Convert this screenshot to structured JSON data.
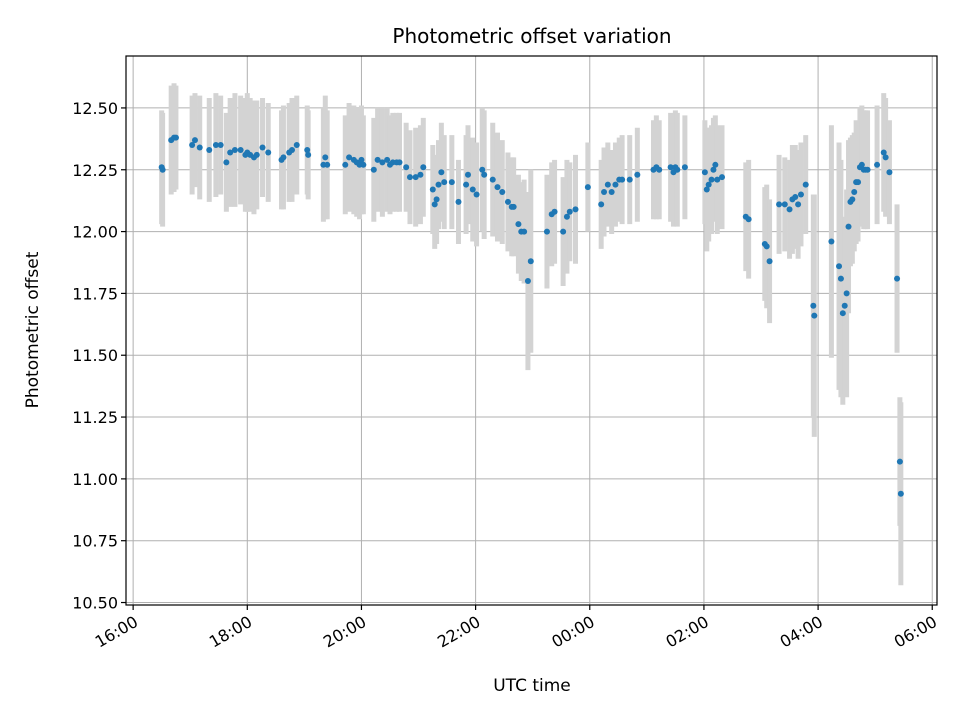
{
  "chart_data": {
    "type": "scatter",
    "title": "Photometric offset variation",
    "xlabel": "UTC time",
    "ylabel": "Photometric offset",
    "x_axis": {
      "kind": "time",
      "range": [
        "16:00",
        "06:05"
      ],
      "ticks": [
        "16:00",
        "18:00",
        "20:00",
        "22:00",
        "00:00",
        "02:00",
        "04:00",
        "06:00"
      ]
    },
    "y_axis": {
      "range": [
        10.49,
        12.71
      ],
      "ticks": [
        "10.50",
        "10.75",
        "11.00",
        "11.25",
        "11.50",
        "11.75",
        "12.00",
        "12.25",
        "12.50"
      ]
    },
    "grid": true,
    "colors": {
      "points": "#1f77b4",
      "error_bars": "#d3d3d3",
      "grid": "#b0b0b0"
    },
    "series": [
      {
        "points": [
          {
            "t": "16:30",
            "y": 12.26,
            "err": 0.23
          },
          {
            "t": "16:31",
            "y": 12.25,
            "err": 0.23
          },
          {
            "t": "16:40",
            "y": 12.37,
            "err": 0.22
          },
          {
            "t": "16:43",
            "y": 12.38,
            "err": 0.22
          },
          {
            "t": "16:45",
            "y": 12.38,
            "err": 0.21
          },
          {
            "t": "17:02",
            "y": 12.35,
            "err": 0.2
          },
          {
            "t": "17:05",
            "y": 12.37,
            "err": 0.19
          },
          {
            "t": "17:10",
            "y": 12.34,
            "err": 0.21
          },
          {
            "t": "17:20",
            "y": 12.33,
            "err": 0.21
          },
          {
            "t": "17:27",
            "y": 12.35,
            "err": 0.21
          },
          {
            "t": "17:32",
            "y": 12.35,
            "err": 0.2
          },
          {
            "t": "17:38",
            "y": 12.28,
            "err": 0.2
          },
          {
            "t": "17:42",
            "y": 12.32,
            "err": 0.22
          },
          {
            "t": "17:47",
            "y": 12.33,
            "err": 0.23
          },
          {
            "t": "17:53",
            "y": 12.33,
            "err": 0.22
          },
          {
            "t": "17:58",
            "y": 12.31,
            "err": 0.23
          },
          {
            "t": "18:00",
            "y": 12.32,
            "err": 0.24
          },
          {
            "t": "18:03",
            "y": 12.31,
            "err": 0.23
          },
          {
            "t": "18:07",
            "y": 12.3,
            "err": 0.23
          },
          {
            "t": "18:10",
            "y": 12.31,
            "err": 0.22
          },
          {
            "t": "18:16",
            "y": 12.34,
            "err": 0.2
          },
          {
            "t": "18:22",
            "y": 12.32,
            "err": 0.2
          },
          {
            "t": "18:36",
            "y": 12.29,
            "err": 0.2
          },
          {
            "t": "18:38",
            "y": 12.3,
            "err": 0.21
          },
          {
            "t": "18:44",
            "y": 12.32,
            "err": 0.2
          },
          {
            "t": "18:47",
            "y": 12.33,
            "err": 0.21
          },
          {
            "t": "18:52",
            "y": 12.35,
            "err": 0.2
          },
          {
            "t": "19:03",
            "y": 12.33,
            "err": 0.18
          },
          {
            "t": "19:04",
            "y": 12.31,
            "err": 0.18
          },
          {
            "t": "19:20",
            "y": 12.27,
            "err": 0.23
          },
          {
            "t": "19:22",
            "y": 12.3,
            "err": 0.25
          },
          {
            "t": "19:24",
            "y": 12.27,
            "err": 0.22
          },
          {
            "t": "19:43",
            "y": 12.27,
            "err": 0.2
          },
          {
            "t": "19:47",
            "y": 12.3,
            "err": 0.22
          },
          {
            "t": "19:52",
            "y": 12.29,
            "err": 0.22
          },
          {
            "t": "19:55",
            "y": 12.28,
            "err": 0.22
          },
          {
            "t": "19:58",
            "y": 12.27,
            "err": 0.22
          },
          {
            "t": "20:00",
            "y": 12.29,
            "err": 0.22
          },
          {
            "t": "20:02",
            "y": 12.27,
            "err": 0.2
          },
          {
            "t": "20:13",
            "y": 12.25,
            "err": 0.21
          },
          {
            "t": "20:17",
            "y": 12.29,
            "err": 0.21
          },
          {
            "t": "20:22",
            "y": 12.28,
            "err": 0.22
          },
          {
            "t": "20:27",
            "y": 12.29,
            "err": 0.21
          },
          {
            "t": "20:30",
            "y": 12.27,
            "err": 0.2
          },
          {
            "t": "20:33",
            "y": 12.28,
            "err": 0.2
          },
          {
            "t": "20:37",
            "y": 12.28,
            "err": 0.2
          },
          {
            "t": "20:40",
            "y": 12.28,
            "err": 0.2
          },
          {
            "t": "20:47",
            "y": 12.26,
            "err": 0.18
          },
          {
            "t": "20:51",
            "y": 12.22,
            "err": 0.19
          },
          {
            "t": "20:57",
            "y": 12.22,
            "err": 0.2
          },
          {
            "t": "21:02",
            "y": 12.23,
            "err": 0.2
          },
          {
            "t": "21:05",
            "y": 12.26,
            "err": 0.2
          },
          {
            "t": "21:15",
            "y": 12.17,
            "err": 0.18
          },
          {
            "t": "21:17",
            "y": 12.11,
            "err": 0.18
          },
          {
            "t": "21:19",
            "y": 12.13,
            "err": 0.18
          },
          {
            "t": "21:21",
            "y": 12.19,
            "err": 0.18
          },
          {
            "t": "21:24",
            "y": 12.24,
            "err": 0.2
          },
          {
            "t": "21:27",
            "y": 12.2,
            "err": 0.19
          },
          {
            "t": "21:35",
            "y": 12.2,
            "err": 0.19
          },
          {
            "t": "21:42",
            "y": 12.12,
            "err": 0.17
          },
          {
            "t": "21:50",
            "y": 12.19,
            "err": 0.2
          },
          {
            "t": "21:52",
            "y": 12.23,
            "err": 0.2
          },
          {
            "t": "21:57",
            "y": 12.17,
            "err": 0.21
          },
          {
            "t": "22:01",
            "y": 12.15,
            "err": 0.21
          },
          {
            "t": "22:07",
            "y": 12.25,
            "err": 0.25
          },
          {
            "t": "22:09",
            "y": 12.23,
            "err": 0.26
          },
          {
            "t": "22:18",
            "y": 12.21,
            "err": 0.23
          },
          {
            "t": "22:23",
            "y": 12.18,
            "err": 0.22
          },
          {
            "t": "22:28",
            "y": 12.16,
            "err": 0.21
          },
          {
            "t": "22:34",
            "y": 12.12,
            "err": 0.2
          },
          {
            "t": "22:38",
            "y": 12.1,
            "err": 0.2
          },
          {
            "t": "22:40",
            "y": 12.1,
            "err": 0.2
          },
          {
            "t": "22:45",
            "y": 12.03,
            "err": 0.2
          },
          {
            "t": "22:48",
            "y": 12.0,
            "err": 0.2
          },
          {
            "t": "22:51",
            "y": 12.0,
            "err": 0.21
          },
          {
            "t": "22:55",
            "y": 11.8,
            "err": 0.36
          },
          {
            "t": "22:58",
            "y": 11.88,
            "err": 0.37
          },
          {
            "t": "23:15",
            "y": 12.0,
            "err": 0.23
          },
          {
            "t": "23:20",
            "y": 12.07,
            "err": 0.21
          },
          {
            "t": "23:23",
            "y": 12.08,
            "err": 0.21
          },
          {
            "t": "23:32",
            "y": 12.0,
            "err": 0.22
          },
          {
            "t": "23:36",
            "y": 12.06,
            "err": 0.23
          },
          {
            "t": "23:39",
            "y": 12.08,
            "err": 0.2
          },
          {
            "t": "23:45",
            "y": 12.09,
            "err": 0.22
          },
          {
            "t": "23:58",
            "y": 12.18,
            "err": 0.18
          },
          {
            "t": "00:12",
            "y": 12.11,
            "err": 0.18
          },
          {
            "t": "00:15",
            "y": 12.16,
            "err": 0.18
          },
          {
            "t": "00:19",
            "y": 12.19,
            "err": 0.17
          },
          {
            "t": "00:23",
            "y": 12.16,
            "err": 0.17
          },
          {
            "t": "00:27",
            "y": 12.19,
            "err": 0.17
          },
          {
            "t": "00:31",
            "y": 12.21,
            "err": 0.17
          },
          {
            "t": "00:34",
            "y": 12.21,
            "err": 0.18
          },
          {
            "t": "00:42",
            "y": 12.21,
            "err": 0.18
          },
          {
            "t": "00:50",
            "y": 12.23,
            "err": 0.19
          },
          {
            "t": "01:07",
            "y": 12.25,
            "err": 0.2
          },
          {
            "t": "01:10",
            "y": 12.26,
            "err": 0.21
          },
          {
            "t": "01:13",
            "y": 12.25,
            "err": 0.2
          },
          {
            "t": "01:25",
            "y": 12.26,
            "err": 0.22
          },
          {
            "t": "01:28",
            "y": 12.24,
            "err": 0.22
          },
          {
            "t": "01:30",
            "y": 12.26,
            "err": 0.23
          },
          {
            "t": "01:32",
            "y": 12.25,
            "err": 0.23
          },
          {
            "t": "01:40",
            "y": 12.26,
            "err": 0.21
          },
          {
            "t": "02:01",
            "y": 12.24,
            "err": 0.21
          },
          {
            "t": "02:03",
            "y": 12.17,
            "err": 0.25
          },
          {
            "t": "02:05",
            "y": 12.19,
            "err": 0.23
          },
          {
            "t": "02:08",
            "y": 12.21,
            "err": 0.22
          },
          {
            "t": "02:10",
            "y": 12.25,
            "err": 0.21
          },
          {
            "t": "02:12",
            "y": 12.27,
            "err": 0.2
          },
          {
            "t": "02:14",
            "y": 12.21,
            "err": 0.22
          },
          {
            "t": "02:19",
            "y": 12.22,
            "err": 0.21
          },
          {
            "t": "02:44",
            "y": 12.06,
            "err": 0.22
          },
          {
            "t": "02:47",
            "y": 12.05,
            "err": 0.24
          },
          {
            "t": "03:04",
            "y": 11.95,
            "err": 0.23
          },
          {
            "t": "03:06",
            "y": 11.94,
            "err": 0.25
          },
          {
            "t": "03:09",
            "y": 11.88,
            "err": 0.25
          },
          {
            "t": "03:19",
            "y": 12.11,
            "err": 0.2
          },
          {
            "t": "03:25",
            "y": 12.11,
            "err": 0.19
          },
          {
            "t": "03:30",
            "y": 12.09,
            "err": 0.2
          },
          {
            "t": "03:33",
            "y": 12.13,
            "err": 0.22
          },
          {
            "t": "03:36",
            "y": 12.14,
            "err": 0.21
          },
          {
            "t": "03:39",
            "y": 12.11,
            "err": 0.22
          },
          {
            "t": "03:42",
            "y": 12.15,
            "err": 0.21
          },
          {
            "t": "03:47",
            "y": 12.19,
            "err": 0.2
          },
          {
            "t": "03:55",
            "y": 11.7,
            "err": 0.45
          },
          {
            "t": "03:56",
            "y": 11.66,
            "err": 0.49
          },
          {
            "t": "04:14",
            "y": 11.96,
            "err": 0.47
          },
          {
            "t": "04:22",
            "y": 11.86,
            "err": 0.5
          },
          {
            "t": "04:24",
            "y": 11.81,
            "err": 0.48
          },
          {
            "t": "04:26",
            "y": 11.67,
            "err": 0.37
          },
          {
            "t": "04:28",
            "y": 11.7,
            "err": 0.36
          },
          {
            "t": "04:30",
            "y": 11.75,
            "err": 0.42
          },
          {
            "t": "04:32",
            "y": 12.02,
            "err": 0.35
          },
          {
            "t": "04:34",
            "y": 12.12,
            "err": 0.26
          },
          {
            "t": "04:36",
            "y": 12.13,
            "err": 0.26
          },
          {
            "t": "04:38",
            "y": 12.16,
            "err": 0.24
          },
          {
            "t": "04:40",
            "y": 12.2,
            "err": 0.25
          },
          {
            "t": "04:42",
            "y": 12.2,
            "err": 0.24
          },
          {
            "t": "04:44",
            "y": 12.26,
            "err": 0.24
          },
          {
            "t": "04:46",
            "y": 12.27,
            "err": 0.24
          },
          {
            "t": "04:48",
            "y": 12.25,
            "err": 0.24
          },
          {
            "t": "04:50",
            "y": 12.25,
            "err": 0.24
          },
          {
            "t": "04:52",
            "y": 12.25,
            "err": 0.24
          },
          {
            "t": "05:02",
            "y": 12.27,
            "err": 0.24
          },
          {
            "t": "05:09",
            "y": 12.32,
            "err": 0.24
          },
          {
            "t": "05:11",
            "y": 12.3,
            "err": 0.24
          },
          {
            "t": "05:15",
            "y": 12.24,
            "err": 0.21
          },
          {
            "t": "05:23",
            "y": 11.81,
            "err": 0.3
          },
          {
            "t": "05:26",
            "y": 11.07,
            "err": 0.26
          },
          {
            "t": "05:27",
            "y": 10.94,
            "err": 0.37
          }
        ]
      }
    ]
  }
}
